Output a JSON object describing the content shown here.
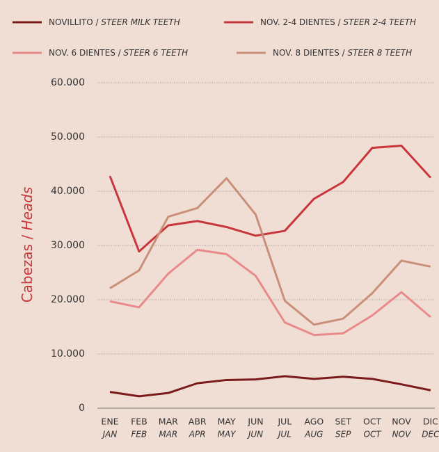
{
  "chart_data": {
    "type": "line",
    "separator": "/",
    "y_label": "Cabezas",
    "y_label_en": "Heads",
    "categories": [
      "ENE",
      "FEB",
      "MAR",
      "ABR",
      "MAY",
      "JUN",
      "JUL",
      "AGO",
      "SET",
      "OCT",
      "NOV",
      "DIC"
    ],
    "categories_en": [
      "JAN",
      "FEB",
      "MAR",
      "APR",
      "MAY",
      "JUN",
      "JUL",
      "AUG",
      "SEP",
      "OCT",
      "NOV",
      "DEC"
    ],
    "ylim": [
      0,
      60000
    ],
    "yticks": [
      0,
      {
        "value": 10000,
        "label": "10.000"
      },
      {
        "value": 20000,
        "label": "20.000"
      },
      {
        "value": 30000,
        "label": "30.000"
      },
      {
        "value": 40000,
        "label": "40.000"
      },
      {
        "value": 50000,
        "label": "50.000"
      },
      {
        "value": 60000,
        "label": "60.000"
      }
    ],
    "grid": true,
    "series": [
      {
        "name": "NOVILLITO",
        "name_en": "STEER MILK TEETH",
        "color": "#7b1a1a",
        "values": [
          3000,
          2200,
          2800,
          4600,
          5200,
          5300,
          5900,
          5400,
          5800,
          5400,
          4400,
          3300
        ]
      },
      {
        "name": "NOV. 2-4 DIENTES",
        "name_en": "STEER 2-4 TEETH",
        "color": "#c8363c",
        "values": [
          42800,
          28900,
          33700,
          34500,
          33400,
          31800,
          32700,
          38600,
          41700,
          48000,
          48400,
          42500
        ]
      },
      {
        "name": "NOV. 6 DIENTES",
        "name_en": "STEER 6 TEETH",
        "color": "#e88a8a",
        "values": [
          19700,
          18600,
          24800,
          29200,
          28400,
          24400,
          15800,
          13500,
          13800,
          17100,
          21400,
          16800
        ]
      },
      {
        "name": "NOV. 8 DIENTES",
        "name_en": "STEER 8 TEETH",
        "color": "#c98f79",
        "values": [
          22100,
          25400,
          35300,
          36900,
          42400,
          35700,
          19800,
          15400,
          16500,
          21200,
          27200,
          26100
        ]
      }
    ]
  }
}
